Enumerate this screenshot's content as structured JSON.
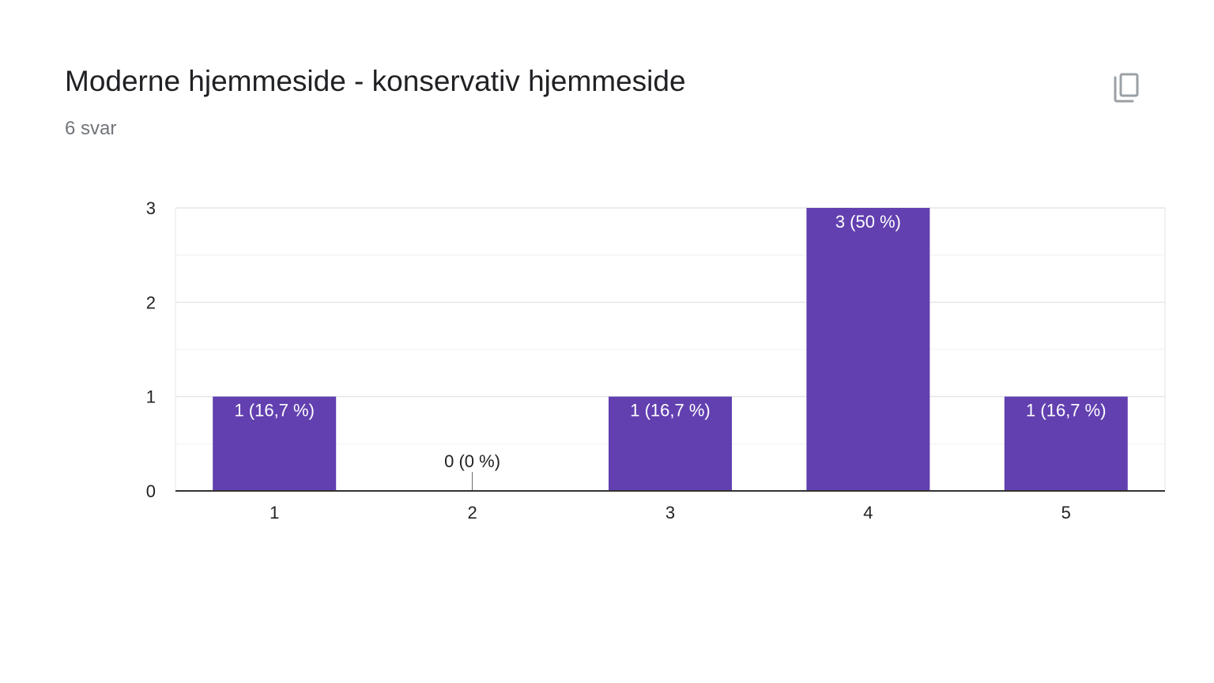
{
  "card": {
    "title": "Moderne hjemmeside - konservativ hjemmeside",
    "response_count": "6 svar",
    "copy_icon": "copy-icon"
  },
  "colors": {
    "bar": "#6240b0",
    "grid": "#e6e6e6",
    "axis": "#333333"
  },
  "chart_data": {
    "type": "bar",
    "categories": [
      "1",
      "2",
      "3",
      "4",
      "5"
    ],
    "values": [
      1,
      0,
      1,
      3,
      1
    ],
    "data_labels": [
      "1 (16,7 %)",
      "0 (0 %)",
      "1 (16,7 %)",
      "3 (50 %)",
      "1 (16,7 %)"
    ],
    "ylim": [
      0,
      3
    ],
    "y_ticks": [
      "0",
      "1",
      "2",
      "3"
    ],
    "y_tick_values": [
      0,
      1,
      2,
      3
    ],
    "minor_gridlines": [
      0.5,
      1.5,
      2.5
    ],
    "grid": true,
    "legend": "none"
  }
}
